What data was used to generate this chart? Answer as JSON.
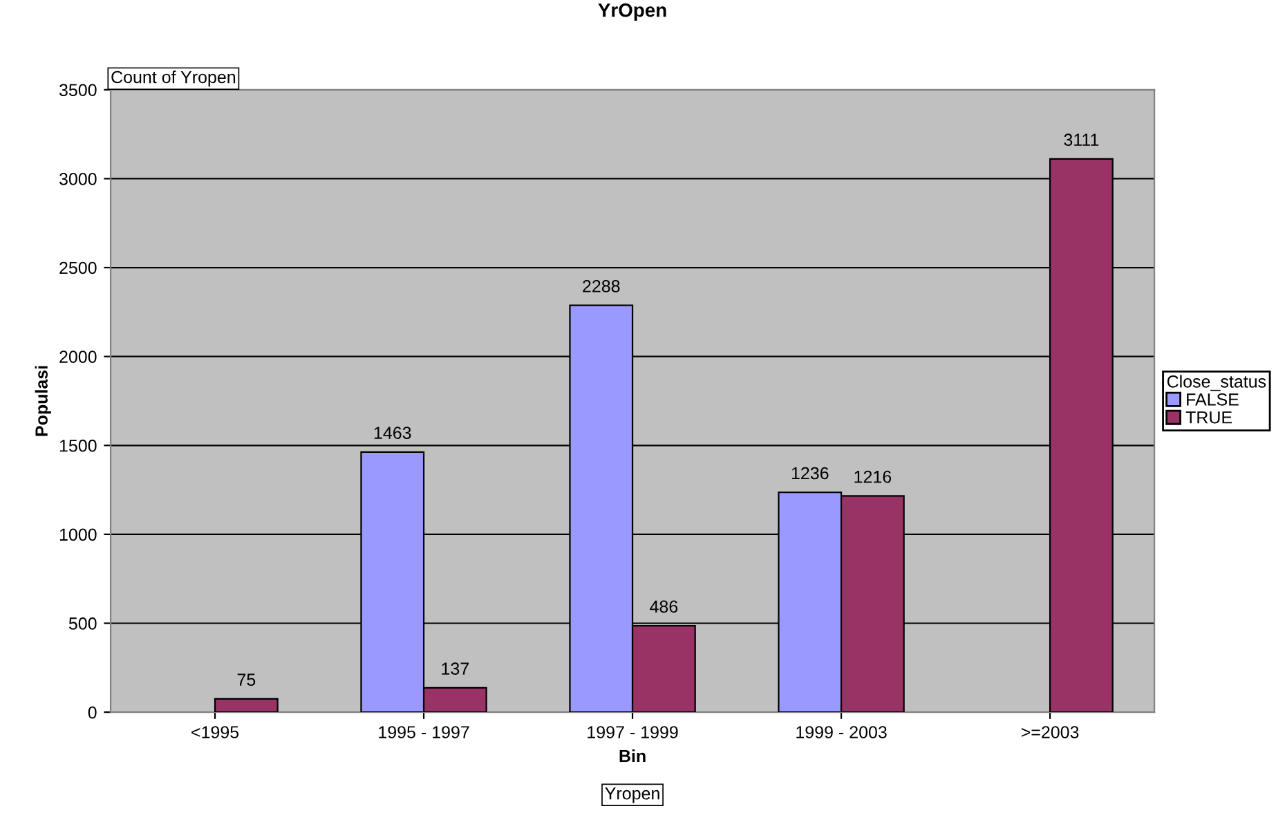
{
  "chart_data": {
    "type": "bar",
    "title": "YrOpen",
    "xlabel": "Bin",
    "ylabel": "Populasi",
    "legend_title": "Close_status",
    "categories": [
      "<1995",
      "1995 - 1997",
      "1997 - 1999",
      "1999 - 2003",
      ">=2003"
    ],
    "series": [
      {
        "name": "FALSE",
        "color": "#9999ff",
        "values": [
          null,
          1463,
          2288,
          1236,
          null
        ]
      },
      {
        "name": "TRUE",
        "color": "#993366",
        "values": [
          75,
          137,
          486,
          1216,
          3111
        ]
      }
    ],
    "ylim": [
      0,
      3500
    ],
    "yticks": [
      0,
      500,
      1000,
      1500,
      2000,
      2500,
      3000,
      3500
    ],
    "grid": "y",
    "legend": "right",
    "data_labels": true,
    "annotations": [
      "Count of Yropen",
      "Yropen"
    ]
  }
}
